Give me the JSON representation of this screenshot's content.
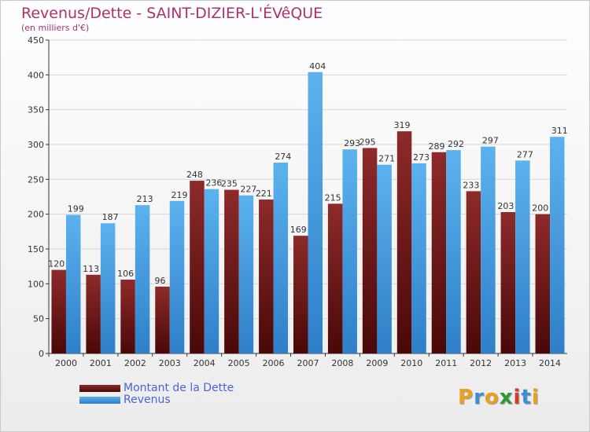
{
  "header": {
    "title": "Revenus/Dette - SAINT-DIZIER-L'ÉVêQUE",
    "subtitle": "(en milliers d'€)"
  },
  "chart_data": {
    "type": "bar",
    "categories": [
      "2000",
      "2001",
      "2002",
      "2003",
      "2004",
      "2005",
      "2006",
      "2007",
      "2008",
      "2009",
      "2010",
      "2011",
      "2012",
      "2013",
      "2014"
    ],
    "series": [
      {
        "name": "Montant de la Dette",
        "color": "#7a1a1a",
        "values": [
          120,
          113,
          106,
          96,
          248,
          235,
          221,
          169,
          215,
          295,
          319,
          289,
          233,
          203,
          200
        ]
      },
      {
        "name": "Revenus",
        "color": "#4aa3e6",
        "values": [
          199,
          187,
          213,
          219,
          236,
          227,
          274,
          404,
          293,
          271,
          273,
          292,
          297,
          277,
          311
        ]
      }
    ],
    "ylim": [
      0,
      450
    ],
    "yticks": [
      0,
      50,
      100,
      150,
      200,
      250,
      300,
      350,
      400,
      450
    ],
    "grid": true,
    "legend_position": "bottom-left"
  },
  "legend": {
    "items": [
      {
        "label": "Montant de la Dette",
        "color": "#7a1a1a"
      },
      {
        "label": "Revenus",
        "color": "#4aa3e6"
      }
    ]
  },
  "logo": {
    "text": "Proxiti",
    "letters": [
      "P",
      "r",
      "o",
      "x",
      "i",
      "t",
      "i"
    ],
    "colors": [
      "#e8a020",
      "#3a8fd8",
      "#e8a020",
      "#2a9a3a",
      "#d83a2a",
      "#3a8fd8",
      "#e8a020"
    ]
  }
}
